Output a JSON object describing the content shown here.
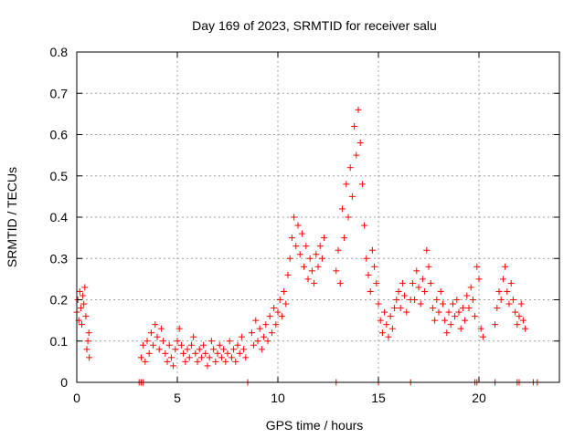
{
  "chart_data": {
    "type": "scatter",
    "title": "Day 169 of 2023, SRMTID for receiver salu",
    "xlabel": "GPS time / hours",
    "ylabel": "SRMTID / TECUs",
    "xlim": [
      0,
      24
    ],
    "ylim": [
      0,
      0.8
    ],
    "xticks": [
      0,
      5,
      10,
      15,
      20
    ],
    "yticks": [
      0,
      0.1,
      0.2,
      0.3,
      0.4,
      0.5,
      0.6,
      0.7,
      0.8
    ],
    "xtick_labels": [
      "0",
      "5",
      "10",
      "15",
      "20"
    ],
    "ytick_labels": [
      "0",
      "0.1",
      "0.2",
      "0.3",
      "0.4",
      "0.5",
      "0.6",
      "0.7",
      "0.8"
    ],
    "grid": true,
    "marker": "+",
    "marker_color": "#ff0000",
    "series": [
      {
        "name": "SRMTID",
        "points": [
          [
            0.0,
            0.17
          ],
          [
            0.05,
            0.2
          ],
          [
            0.1,
            0.15
          ],
          [
            0.15,
            0.22
          ],
          [
            0.2,
            0.18
          ],
          [
            0.25,
            0.14
          ],
          [
            0.3,
            0.21
          ],
          [
            0.35,
            0.19
          ],
          [
            0.4,
            0.23
          ],
          [
            0.45,
            0.16
          ],
          [
            0.5,
            0.08
          ],
          [
            0.55,
            0.1
          ],
          [
            0.6,
            0.12
          ],
          [
            0.62,
            0.06
          ],
          [
            3.2,
            0.06
          ],
          [
            3.3,
            0.09
          ],
          [
            3.4,
            0.05
          ],
          [
            3.5,
            0.1
          ],
          [
            3.6,
            0.07
          ],
          [
            3.7,
            0.12
          ],
          [
            3.8,
            0.09
          ],
          [
            3.9,
            0.14
          ],
          [
            4.0,
            0.11
          ],
          [
            4.1,
            0.08
          ],
          [
            4.2,
            0.13
          ],
          [
            4.3,
            0.1
          ],
          [
            4.4,
            0.07
          ],
          [
            4.5,
            0.05
          ],
          [
            4.6,
            0.09
          ],
          [
            4.7,
            0.06
          ],
          [
            4.8,
            0.04
          ],
          [
            4.9,
            0.08
          ],
          [
            5.0,
            0.1
          ],
          [
            5.1,
            0.13
          ],
          [
            5.2,
            0.09
          ],
          [
            5.3,
            0.07
          ],
          [
            5.4,
            0.05
          ],
          [
            5.5,
            0.08
          ],
          [
            5.6,
            0.06
          ],
          [
            5.7,
            0.09
          ],
          [
            5.8,
            0.11
          ],
          [
            5.9,
            0.07
          ],
          [
            6.0,
            0.05
          ],
          [
            6.1,
            0.08
          ],
          [
            6.2,
            0.06
          ],
          [
            6.3,
            0.09
          ],
          [
            6.4,
            0.07
          ],
          [
            6.5,
            0.04
          ],
          [
            6.6,
            0.06
          ],
          [
            6.7,
            0.1
          ],
          [
            6.8,
            0.08
          ],
          [
            6.9,
            0.05
          ],
          [
            7.0,
            0.07
          ],
          [
            7.1,
            0.09
          ],
          [
            7.2,
            0.06
          ],
          [
            7.3,
            0.08
          ],
          [
            7.4,
            0.05
          ],
          [
            7.5,
            0.07
          ],
          [
            7.6,
            0.1
          ],
          [
            7.7,
            0.06
          ],
          [
            7.8,
            0.08
          ],
          [
            7.9,
            0.05
          ],
          [
            8.0,
            0.09
          ],
          [
            8.1,
            0.07
          ],
          [
            8.2,
            0.11
          ],
          [
            8.3,
            0.08
          ],
          [
            8.4,
            0.06
          ],
          [
            8.7,
            0.12
          ],
          [
            8.8,
            0.09
          ],
          [
            8.9,
            0.15
          ],
          [
            9.0,
            0.1
          ],
          [
            9.1,
            0.13
          ],
          [
            9.2,
            0.08
          ],
          [
            9.3,
            0.11
          ],
          [
            9.4,
            0.14
          ],
          [
            9.5,
            0.1
          ],
          [
            9.6,
            0.16
          ],
          [
            9.7,
            0.12
          ],
          [
            9.8,
            0.18
          ],
          [
            9.9,
            0.14
          ],
          [
            10.0,
            0.17
          ],
          [
            10.1,
            0.2
          ],
          [
            10.2,
            0.16
          ],
          [
            10.3,
            0.22
          ],
          [
            10.4,
            0.19
          ],
          [
            10.5,
            0.26
          ],
          [
            10.6,
            0.3
          ],
          [
            10.7,
            0.35
          ],
          [
            10.8,
            0.4
          ],
          [
            10.9,
            0.33
          ],
          [
            11.0,
            0.38
          ],
          [
            11.1,
            0.31
          ],
          [
            11.2,
            0.36
          ],
          [
            11.3,
            0.28
          ],
          [
            11.4,
            0.33
          ],
          [
            11.5,
            0.25
          ],
          [
            11.6,
            0.3
          ],
          [
            11.7,
            0.27
          ],
          [
            11.8,
            0.24
          ],
          [
            11.9,
            0.31
          ],
          [
            12.0,
            0.28
          ],
          [
            12.1,
            0.33
          ],
          [
            12.2,
            0.3
          ],
          [
            12.3,
            0.35
          ],
          [
            12.9,
            0.27
          ],
          [
            13.0,
            0.32
          ],
          [
            13.1,
            0.24
          ],
          [
            13.2,
            0.42
          ],
          [
            13.3,
            0.35
          ],
          [
            13.4,
            0.48
          ],
          [
            13.5,
            0.4
          ],
          [
            13.6,
            0.52
          ],
          [
            13.7,
            0.45
          ],
          [
            13.8,
            0.62
          ],
          [
            13.9,
            0.55
          ],
          [
            14.0,
            0.66
          ],
          [
            14.1,
            0.58
          ],
          [
            14.2,
            0.48
          ],
          [
            14.3,
            0.38
          ],
          [
            14.4,
            0.3
          ],
          [
            14.5,
            0.26
          ],
          [
            14.6,
            0.22
          ],
          [
            14.7,
            0.32
          ],
          [
            14.8,
            0.28
          ],
          [
            14.9,
            0.24
          ],
          [
            15.0,
            0.19
          ],
          [
            15.1,
            0.15
          ],
          [
            15.2,
            0.12
          ],
          [
            15.3,
            0.17
          ],
          [
            15.4,
            0.14
          ],
          [
            15.5,
            0.11
          ],
          [
            15.6,
            0.16
          ],
          [
            15.7,
            0.13
          ],
          [
            15.8,
            0.18
          ],
          [
            15.9,
            0.2
          ],
          [
            16.0,
            0.22
          ],
          [
            16.1,
            0.18
          ],
          [
            16.2,
            0.24
          ],
          [
            16.3,
            0.21
          ],
          [
            16.4,
            0.17
          ],
          [
            16.6,
            0.2
          ],
          [
            16.7,
            0.24
          ],
          [
            16.8,
            0.2
          ],
          [
            16.9,
            0.27
          ],
          [
            17.0,
            0.23
          ],
          [
            17.1,
            0.19
          ],
          [
            17.2,
            0.25
          ],
          [
            17.3,
            0.22
          ],
          [
            17.4,
            0.32
          ],
          [
            17.5,
            0.28
          ],
          [
            17.6,
            0.24
          ],
          [
            17.7,
            0.18
          ],
          [
            17.8,
            0.15
          ],
          [
            17.9,
            0.2
          ],
          [
            18.0,
            0.17
          ],
          [
            18.1,
            0.22
          ],
          [
            18.2,
            0.19
          ],
          [
            18.3,
            0.15
          ],
          [
            18.4,
            0.12
          ],
          [
            18.5,
            0.17
          ],
          [
            18.6,
            0.14
          ],
          [
            18.7,
            0.19
          ],
          [
            18.8,
            0.16
          ],
          [
            18.9,
            0.2
          ],
          [
            19.0,
            0.17
          ],
          [
            19.1,
            0.13
          ],
          [
            19.2,
            0.18
          ],
          [
            19.3,
            0.15
          ],
          [
            19.4,
            0.21
          ],
          [
            19.5,
            0.18
          ],
          [
            19.6,
            0.23
          ],
          [
            19.7,
            0.2
          ],
          [
            19.8,
            0.16
          ],
          [
            19.9,
            0.28
          ],
          [
            20.0,
            0.25
          ],
          [
            20.1,
            0.13
          ],
          [
            20.2,
            0.11
          ],
          [
            20.8,
            0.14
          ],
          [
            20.9,
            0.18
          ],
          [
            21.0,
            0.22
          ],
          [
            21.1,
            0.2
          ],
          [
            21.2,
            0.25
          ],
          [
            21.3,
            0.28
          ],
          [
            21.4,
            0.22
          ],
          [
            21.5,
            0.19
          ],
          [
            21.6,
            0.24
          ],
          [
            21.7,
            0.2
          ],
          [
            21.8,
            0.17
          ],
          [
            21.9,
            0.14
          ],
          [
            22.0,
            0.16
          ],
          [
            22.1,
            0.19
          ],
          [
            22.2,
            0.15
          ],
          [
            22.3,
            0.13
          ],
          [
            3.1,
            0.0
          ],
          [
            3.2,
            0.0
          ],
          [
            3.3,
            0.0
          ],
          [
            8.5,
            0.0
          ],
          [
            12.9,
            0.0
          ],
          [
            15.0,
            0.0
          ],
          [
            16.6,
            0.0
          ],
          [
            19.8,
            0.0
          ],
          [
            19.9,
            0.0
          ],
          [
            20.8,
            0.0
          ],
          [
            21.9,
            0.0
          ],
          [
            22.0,
            0.0
          ],
          [
            22.7,
            0.0
          ],
          [
            22.9,
            0.0
          ]
        ]
      }
    ]
  }
}
